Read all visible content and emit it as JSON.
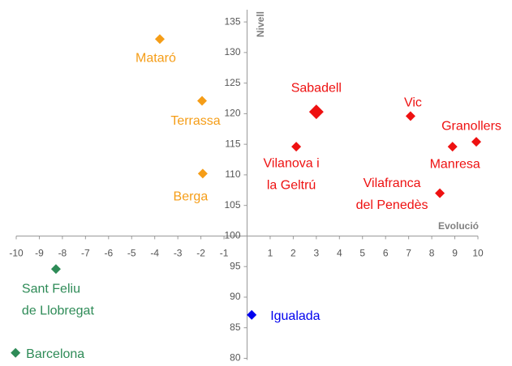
{
  "chart_data": {
    "type": "scatter",
    "x_label": "Evolució",
    "y_label": "Nivell",
    "xlim": [
      -10,
      10
    ],
    "ylim": [
      80,
      137
    ],
    "xticks": [
      -10,
      -9,
      -8,
      -7,
      -6,
      -5,
      -4,
      -3,
      -2,
      -1,
      1,
      2,
      3,
      4,
      5,
      6,
      7,
      8,
      9,
      10
    ],
    "yticks": [
      80,
      85,
      90,
      95,
      100,
      105,
      110,
      115,
      120,
      125,
      130,
      135
    ],
    "points": [
      {
        "label": [
          "Mataró"
        ],
        "x": -3.78,
        "y": 132.2,
        "color": "#f59d17"
      },
      {
        "label": [
          "Terrassa"
        ],
        "x": -1.95,
        "y": 122.1,
        "color": "#f59d17"
      },
      {
        "label": [
          "Berga"
        ],
        "x": -1.92,
        "y": 110.2,
        "color": "#f59d17"
      },
      {
        "label": [
          "Sabadell"
        ],
        "x": 3.0,
        "y": 120.3,
        "color": "#ee1111"
      },
      {
        "label": [
          "Vic"
        ],
        "x": 7.08,
        "y": 119.6,
        "color": "#ee1111"
      },
      {
        "label": [
          "Granollers"
        ],
        "x": 9.93,
        "y": 115.4,
        "color": "#ee1111"
      },
      {
        "label": [
          "Manresa"
        ],
        "x": 8.9,
        "y": 114.6,
        "color": "#ee1111"
      },
      {
        "label": [
          "Vilanova i",
          "la Geltrú"
        ],
        "x": 2.13,
        "y": 114.6,
        "color": "#ee1111"
      },
      {
        "label": [
          "Vilafranca",
          "del Penedès"
        ],
        "x": 8.35,
        "y": 107.0,
        "color": "#ee1111"
      },
      {
        "label": [
          "Sant Feliu",
          "de Llobregat"
        ],
        "x": -8.28,
        "y": 94.6,
        "color": "#2e8b57"
      },
      {
        "label": [
          "Barcelona"
        ],
        "x": -10.03,
        "y": 80.9,
        "color": "#2e8b57"
      },
      {
        "label": [
          "Igualada"
        ],
        "x": 0.2,
        "y": 87.1,
        "color": "#0000ee"
      }
    ]
  }
}
